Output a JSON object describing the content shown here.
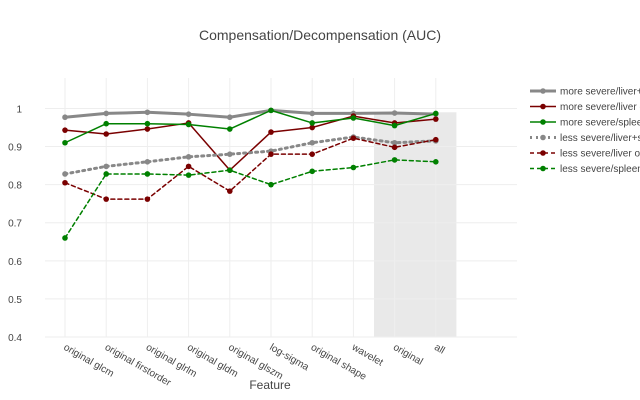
{
  "chart_data": {
    "type": "line",
    "title": "Compensation/Decompensation (AUC)",
    "xlabel": "Feature",
    "ylabel": "",
    "ylim": [
      0.4,
      1.08
    ],
    "yticks": [
      "0.4",
      "0.5",
      "0.6",
      "0.7",
      "0.8",
      "0.9",
      "1"
    ],
    "ytick_values": [
      0.4,
      0.5,
      0.6,
      0.7,
      0.8,
      0.9,
      1.0
    ],
    "categories": [
      "original glcm",
      "original firstorder",
      "original glrlm",
      "original gldm",
      "original glszm",
      "log-sigma",
      "original shape",
      "wavelet",
      "original",
      "all"
    ],
    "highlight_categories": [
      "original",
      "all"
    ],
    "highlight_color": "#e9e9e9",
    "grid": true,
    "legend_position": "right",
    "series": [
      {
        "name": "more severe/liver+spleen",
        "color": "#888888",
        "dash": "solid",
        "width": 3,
        "values": [
          0.977,
          0.987,
          0.99,
          0.985,
          0.977,
          0.995,
          0.987,
          0.987,
          0.988,
          0.985
        ]
      },
      {
        "name": "more severe/liver only",
        "color": "#7a0000",
        "dash": "solid",
        "width": 1.5,
        "values": [
          0.943,
          0.933,
          0.946,
          0.962,
          0.838,
          0.938,
          0.95,
          0.98,
          0.962,
          0.972
        ]
      },
      {
        "name": "more severe/spleen only",
        "color": "#008000",
        "dash": "solid",
        "width": 1.5,
        "values": [
          0.91,
          0.96,
          0.96,
          0.958,
          0.946,
          0.995,
          0.962,
          0.975,
          0.955,
          0.987
        ]
      },
      {
        "name": "less severe/liver+spleen",
        "color": "#888888",
        "dash": "dot",
        "width": 3,
        "values": [
          0.828,
          0.848,
          0.86,
          0.873,
          0.88,
          0.888,
          0.91,
          0.925,
          0.91,
          0.915
        ]
      },
      {
        "name": "less severe/liver only",
        "color": "#7a0000",
        "dash": "dash",
        "width": 1.5,
        "values": [
          0.805,
          0.762,
          0.762,
          0.848,
          0.783,
          0.88,
          0.88,
          0.922,
          0.898,
          0.918
        ]
      },
      {
        "name": "less severe/spleen only",
        "color": "#008000",
        "dash": "dash",
        "width": 1.5,
        "values": [
          0.66,
          0.828,
          0.828,
          0.825,
          0.838,
          0.8,
          0.835,
          0.845,
          0.865,
          0.86
        ]
      }
    ]
  }
}
